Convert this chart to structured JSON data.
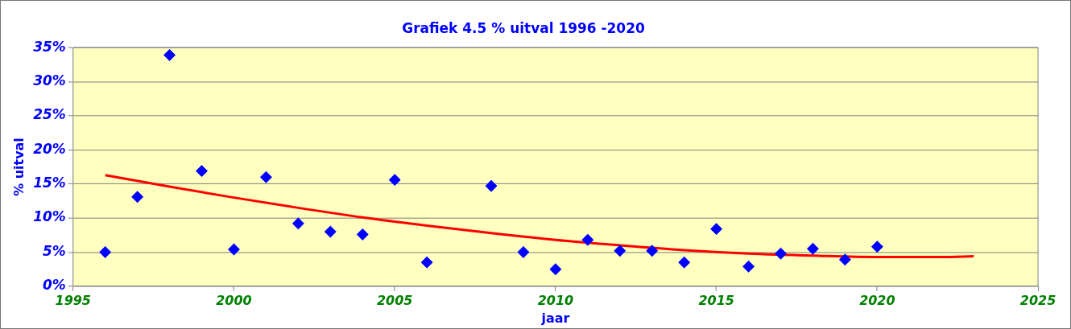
{
  "chart_data": {
    "type": "scatter",
    "title": "Grafiek 4.5 % uitval 1996 -2020",
    "xlabel": "jaar",
    "ylabel": "% uitval",
    "x": [
      1996,
      1997,
      1998,
      1999,
      2000,
      2001,
      2002,
      2003,
      2004,
      2005,
      2006,
      2008,
      2009,
      2010,
      2011,
      2012,
      2013,
      2014,
      2015,
      2016,
      2017,
      2018,
      2019,
      2020
    ],
    "series": [
      {
        "color": "#0000ff",
        "marker": "diamond",
        "values": [
          5.0,
          13.1,
          33.9,
          16.9,
          5.4,
          16.0,
          9.2,
          8.0,
          7.6,
          15.6,
          3.5,
          14.7,
          5.0,
          2.5,
          6.8,
          5.2,
          5.2,
          3.5,
          8.4,
          2.9,
          4.8,
          5.5,
          3.9,
          5.8
        ]
      },
      {
        "type": "line",
        "color": "#ff0000",
        "marker": "none",
        "x": [
          1996,
          1998,
          2000,
          2002,
          2004,
          2006,
          2008,
          2010,
          2012,
          2014,
          2016,
          2018,
          2020,
          2022,
          2023
        ],
        "values": [
          16.3,
          14.6,
          13.0,
          11.5,
          10.1,
          8.9,
          7.8,
          6.8,
          6.0,
          5.3,
          4.8,
          4.5,
          4.3,
          4.3,
          4.4
        ]
      }
    ],
    "xlim": [
      1995,
      2025
    ],
    "xticks": [
      1995,
      2000,
      2005,
      2010,
      2015,
      2020,
      2025
    ],
    "ylim": [
      0,
      35
    ],
    "yticks": [
      {
        "value": 0,
        "label": "0%"
      },
      {
        "value": 5,
        "label": "5%"
      },
      {
        "value": 10,
        "label": "10%"
      },
      {
        "value": 15,
        "label": "15%"
      },
      {
        "value": 20,
        "label": "20%"
      },
      {
        "value": 25,
        "label": "25%"
      },
      {
        "value": 30,
        "label": "30%"
      },
      {
        "value": 35,
        "label": "35%"
      }
    ],
    "grid": "y",
    "legend": false
  }
}
